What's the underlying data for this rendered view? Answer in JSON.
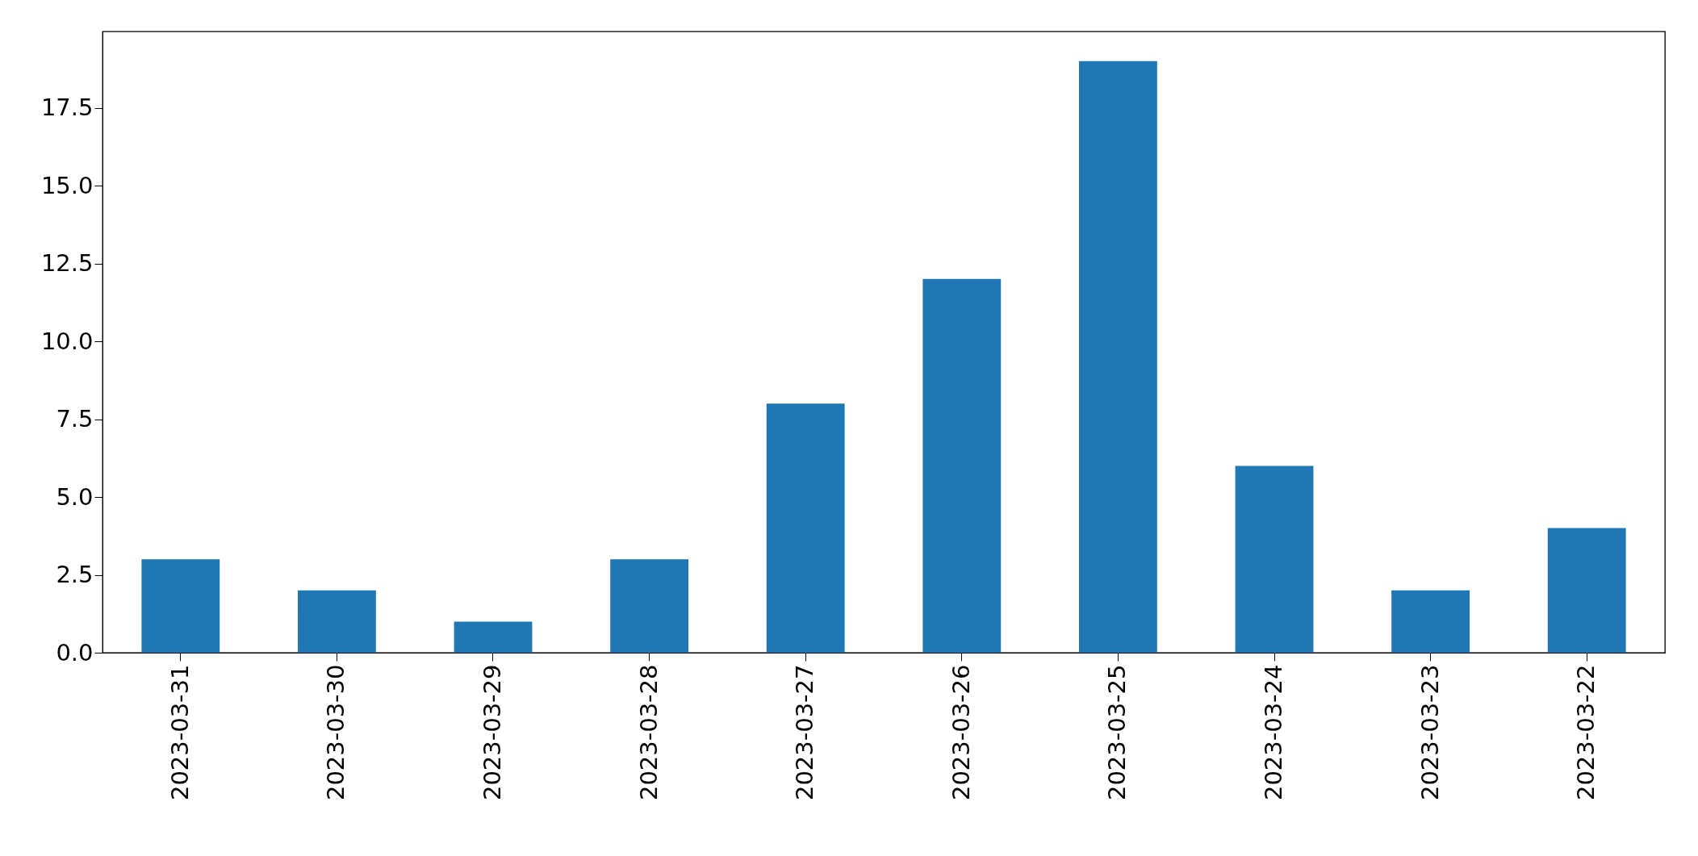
{
  "chart_data": {
    "type": "bar",
    "categories": [
      "2023-03-31",
      "2023-03-30",
      "2023-03-29",
      "2023-03-28",
      "2023-03-27",
      "2023-03-26",
      "2023-03-25",
      "2023-03-24",
      "2023-03-23",
      "2023-03-22"
    ],
    "values": [
      3,
      2,
      1,
      3,
      8,
      12,
      19,
      6,
      2,
      4
    ],
    "color": "#1f77b4",
    "ylim": [
      0,
      19.95
    ],
    "yticks": [
      {
        "value": 0,
        "label": "0.0"
      },
      2.5,
      {
        "value": 5,
        "label": "5.0"
      },
      7.5,
      {
        "value": 10,
        "label": "10.0"
      },
      12.5,
      {
        "value": 15,
        "label": "15.0"
      },
      17.5
    ],
    "grid": false
  }
}
